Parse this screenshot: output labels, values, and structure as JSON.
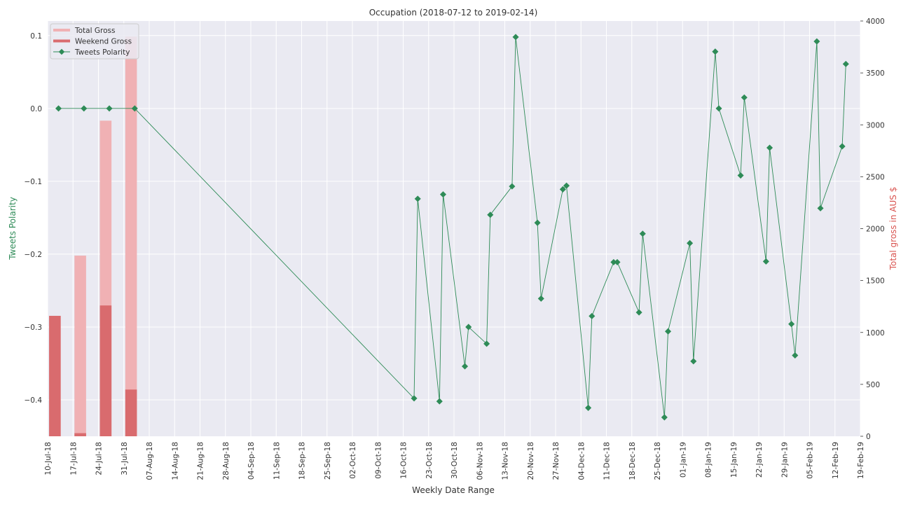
{
  "chart_data": {
    "type": "bar+line",
    "title": "Occupation (2018-07-12 to 2019-02-14)",
    "xlabel": "Weekly Date Range",
    "ylabel_left": "Tweets Polarity",
    "ylabel_right": "Total gross in AUS $",
    "ylim_left": [
      -0.45,
      0.12
    ],
    "ylim_right": [
      0,
      4000
    ],
    "xlim": [
      "2018-07-10",
      "2019-02-19"
    ],
    "y_ticks_left": [
      "0.1",
      "0.0",
      "−0.1",
      "−0.2",
      "−0.3",
      "−0.4"
    ],
    "y_ticks_left_values": [
      0.1,
      0.0,
      -0.1,
      -0.2,
      -0.3,
      -0.4
    ],
    "y_ticks_right": [
      "0",
      "500",
      "1000",
      "1500",
      "2000",
      "2500",
      "3000",
      "3500",
      "4000"
    ],
    "y_ticks_right_values": [
      0,
      500,
      1000,
      1500,
      2000,
      2500,
      3000,
      3500,
      4000
    ],
    "x_ticks": [
      {
        "date": "2018-07-10",
        "label": "10-Jul-18"
      },
      {
        "date": "2018-07-17",
        "label": "17-Jul-18"
      },
      {
        "date": "2018-07-24",
        "label": "24-Jul-18"
      },
      {
        "date": "2018-07-31",
        "label": "31-Jul-18"
      },
      {
        "date": "2018-08-07",
        "label": "07-Aug-18"
      },
      {
        "date": "2018-08-14",
        "label": "14-Aug-18"
      },
      {
        "date": "2018-08-21",
        "label": "21-Aug-18"
      },
      {
        "date": "2018-08-28",
        "label": "28-Aug-18"
      },
      {
        "date": "2018-09-04",
        "label": "04-Sep-18"
      },
      {
        "date": "2018-09-11",
        "label": "11-Sep-18"
      },
      {
        "date": "2018-09-18",
        "label": "18-Sep-18"
      },
      {
        "date": "2018-09-25",
        "label": "25-Sep-18"
      },
      {
        "date": "2018-10-02",
        "label": "02-Oct-18"
      },
      {
        "date": "2018-10-09",
        "label": "09-Oct-18"
      },
      {
        "date": "2018-10-16",
        "label": "16-Oct-18"
      },
      {
        "date": "2018-10-23",
        "label": "23-Oct-18"
      },
      {
        "date": "2018-10-30",
        "label": "30-Oct-18"
      },
      {
        "date": "2018-11-06",
        "label": "06-Nov-18"
      },
      {
        "date": "2018-11-13",
        "label": "13-Nov-18"
      },
      {
        "date": "2018-11-20",
        "label": "20-Nov-18"
      },
      {
        "date": "2018-11-27",
        "label": "27-Nov-18"
      },
      {
        "date": "2018-12-04",
        "label": "04-Dec-18"
      },
      {
        "date": "2018-12-11",
        "label": "11-Dec-18"
      },
      {
        "date": "2018-12-18",
        "label": "18-Dec-18"
      },
      {
        "date": "2018-12-25",
        "label": "25-Dec-18"
      },
      {
        "date": "2019-01-01",
        "label": "01-Jan-19"
      },
      {
        "date": "2019-01-08",
        "label": "08-Jan-19"
      },
      {
        "date": "2019-01-15",
        "label": "15-Jan-19"
      },
      {
        "date": "2019-01-22",
        "label": "22-Jan-19"
      },
      {
        "date": "2019-01-29",
        "label": "29-Jan-19"
      },
      {
        "date": "2019-02-05",
        "label": "05-Feb-19"
      },
      {
        "date": "2019-02-12",
        "label": "12-Feb-19"
      },
      {
        "date": "2019-02-19",
        "label": "19-Feb-19"
      }
    ],
    "bars": {
      "dates": [
        "2018-07-12",
        "2018-07-19",
        "2018-07-26",
        "2018-08-02"
      ],
      "total_gross": [
        1160,
        1740,
        3040,
        3850
      ],
      "weekend_gross": [
        1160,
        30,
        1260,
        450
      ]
    },
    "series": [
      {
        "name": "Tweets Polarity",
        "dates": [
          "2018-07-13",
          "2018-07-20",
          "2018-07-27",
          "2018-08-03",
          "2018-10-19",
          "2018-10-20",
          "2018-10-26",
          "2018-10-27",
          "2018-11-02",
          "2018-11-03",
          "2018-11-08",
          "2018-11-09",
          "2018-11-15",
          "2018-11-16",
          "2018-11-22",
          "2018-11-23",
          "2018-11-29",
          "2018-11-30",
          "2018-12-06",
          "2018-12-07",
          "2018-12-13",
          "2018-12-14",
          "2018-12-20",
          "2018-12-21",
          "2018-12-27",
          "2018-12-28",
          "2019-01-03",
          "2019-01-04",
          "2019-01-10",
          "2019-01-11",
          "2019-01-17",
          "2019-01-18",
          "2019-01-24",
          "2019-01-25",
          "2019-01-31",
          "2019-02-01",
          "2019-02-07",
          "2019-02-08",
          "2019-02-14",
          "2019-02-15"
        ],
        "values": [
          0.0,
          0.0,
          0.0,
          0.0,
          -0.398,
          -0.124,
          -0.402,
          -0.118,
          -0.354,
          -0.3,
          -0.323,
          -0.146,
          -0.107,
          0.098,
          -0.157,
          -0.261,
          -0.111,
          -0.106,
          -0.411,
          -0.285,
          -0.211,
          -0.211,
          -0.28,
          -0.172,
          -0.424,
          -0.306,
          -0.185,
          -0.347,
          0.078,
          0.0,
          -0.092,
          0.015,
          -0.21,
          -0.054,
          -0.296,
          -0.339,
          0.092,
          -0.137,
          -0.052,
          0.061
        ]
      }
    ],
    "legend": {
      "position": "top-left",
      "entries": [
        "Total Gross",
        "Weekend Gross",
        "Tweets Polarity"
      ]
    },
    "grid": true,
    "colors": {
      "background": "#eaeaf2",
      "grid": "#ffffff",
      "total_gross": "#f0b1b4",
      "weekend_gross": "#d96b6e",
      "polarity": "#2e8b57",
      "left_axis_label": "#2e8b57",
      "right_axis_label": "#d9534f",
      "text": "#333333"
    }
  }
}
